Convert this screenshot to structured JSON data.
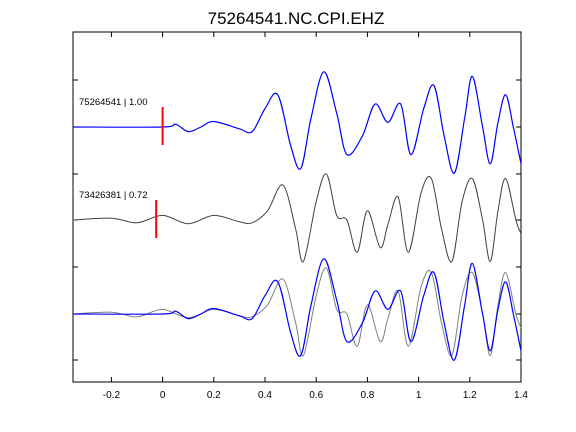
{
  "chart_data": {
    "type": "line",
    "title": "75264541.NC.CPI.EHZ",
    "xlabel": "",
    "ylabel": "",
    "xlim": [
      -0.35,
      1.4
    ],
    "x_ticks": [
      -0.2,
      0,
      0.2,
      0.4,
      0.6,
      0.8,
      1,
      1.2,
      1.4
    ],
    "x_tick_labels": [
      "-0.2",
      "0",
      "0.2",
      "0.4",
      "0.6",
      "0.8",
      "1",
      "1.2",
      "1.4"
    ],
    "grid": false,
    "colors": {
      "template": "#0000ff",
      "candidate": "#404040",
      "candidate_overlay": "#808080",
      "pick": "#ff0000"
    },
    "traces": [
      {
        "label": "75264541 | 1.00",
        "pick_time": 0.0,
        "amplitude_scale": 1.0,
        "color": "template",
        "samples": [
          [
            -0.35,
            0
          ],
          [
            0.0,
            0
          ],
          [
            0.05,
            0.03
          ],
          [
            0.1,
            -0.05
          ],
          [
            0.15,
            0.0
          ],
          [
            0.2,
            0.06
          ],
          [
            0.3,
            -0.02
          ],
          [
            0.35,
            -0.05
          ],
          [
            0.4,
            0.2
          ],
          [
            0.45,
            0.35
          ],
          [
            0.5,
            -0.2
          ],
          [
            0.54,
            -0.45
          ],
          [
            0.58,
            0.1
          ],
          [
            0.63,
            0.6
          ],
          [
            0.68,
            0.15
          ],
          [
            0.72,
            -0.3
          ],
          [
            0.78,
            -0.1
          ],
          [
            0.83,
            0.25
          ],
          [
            0.88,
            0.05
          ],
          [
            0.93,
            0.25
          ],
          [
            0.97,
            -0.3
          ],
          [
            1.02,
            0.2
          ],
          [
            1.06,
            0.45
          ],
          [
            1.1,
            -0.1
          ],
          [
            1.14,
            -0.5
          ],
          [
            1.18,
            0.1
          ],
          [
            1.21,
            0.55
          ],
          [
            1.25,
            0.0
          ],
          [
            1.28,
            -0.4
          ],
          [
            1.31,
            0.05
          ],
          [
            1.34,
            0.35
          ],
          [
            1.37,
            0.0
          ],
          [
            1.4,
            -0.4
          ]
        ]
      },
      {
        "label": "73426381 | 0.72",
        "pick_time": -0.025,
        "amplitude_scale": 0.72,
        "color": "candidate",
        "samples": [
          [
            -0.35,
            0
          ],
          [
            -0.2,
            0.02
          ],
          [
            -0.1,
            -0.03
          ],
          [
            0.0,
            0.05
          ],
          [
            0.1,
            -0.04
          ],
          [
            0.2,
            0.05
          ],
          [
            0.3,
            -0.02
          ],
          [
            0.35,
            -0.03
          ],
          [
            0.41,
            0.1
          ],
          [
            0.47,
            0.38
          ],
          [
            0.52,
            -0.1
          ],
          [
            0.55,
            -0.45
          ],
          [
            0.6,
            0.2
          ],
          [
            0.64,
            0.5
          ],
          [
            0.68,
            0.05
          ],
          [
            0.72,
            0.0
          ],
          [
            0.76,
            -0.35
          ],
          [
            0.8,
            0.1
          ],
          [
            0.85,
            -0.3
          ],
          [
            0.88,
            -0.05
          ],
          [
            0.92,
            0.25
          ],
          [
            0.96,
            -0.35
          ],
          [
            1.01,
            0.3
          ],
          [
            1.05,
            0.45
          ],
          [
            1.09,
            -0.1
          ],
          [
            1.13,
            -0.45
          ],
          [
            1.17,
            0.2
          ],
          [
            1.21,
            0.45
          ],
          [
            1.25,
            0.0
          ],
          [
            1.28,
            -0.45
          ],
          [
            1.31,
            0.1
          ],
          [
            1.34,
            0.45
          ],
          [
            1.38,
            0.0
          ],
          [
            1.4,
            -0.15
          ]
        ]
      }
    ]
  }
}
